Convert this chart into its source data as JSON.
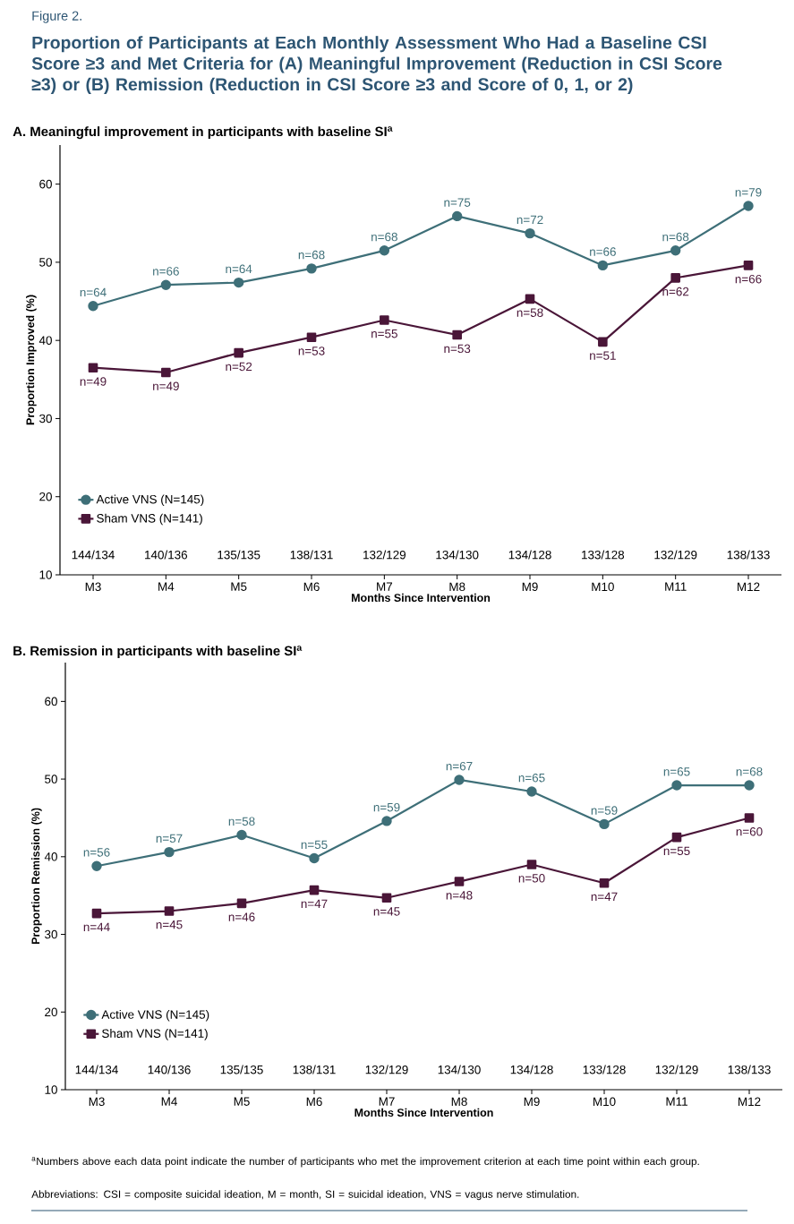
{
  "chart_data": [
    {
      "type": "line",
      "title": "Proportion of Participants at Each Monthly Assessment Who Had a Baseline CSI Score ≥3 and Met Criteria for (A) Meaningful Improvement (Reduction in CSI Score ≥3) or (B) Remission (Reduction in CSI Score ≥3 and Score of 0, 1, or 2)",
      "subtitle": "A. Meaningful improvement in participants with baseline SI$^{a}$",
      "xlabel": "Months Since Intervention",
      "ylabel": "Proportion Improved (%)",
      "categories": [
        "M3",
        "M4",
        "M5",
        "M6",
        "M7",
        "M8",
        "M9",
        "M10",
        "M11",
        "M12"
      ],
      "series": [
        {
          "name": "Active VNS (N=145)",
          "color": "#3e6f78",
          "marker": "circle",
          "values": [
            44.4,
            47.1,
            47.4,
            49.2,
            51.5,
            55.9,
            53.7,
            49.6,
            51.5,
            57.2
          ]
        },
        {
          "name": "Sham VNS (N=141)",
          "color": "#4a1638",
          "marker": "square",
          "values": [
            36.5,
            35.9,
            38.4,
            40.4,
            42.6,
            40.7,
            45.3,
            39.8,
            48.0,
            49.6
          ]
        }
      ],
      "ylim": [
        10,
        65
      ],
      "yticks": [
        10,
        20,
        30,
        40,
        50,
        60
      ],
      "legend": "bottom left",
      "annotations": [
        "144/134",
        "140/136",
        "135/135",
        "138/131",
        "132/129",
        "134/130",
        "134/128",
        "133/128",
        "132/129",
        "138/133",
        "Figure 2.",
        {
          "text": "n=64",
          "x": "M3",
          "y": 44.4
        },
        {
          "text": "n=66",
          "x": "M4",
          "y": 47.1
        },
        {
          "text": "n=64",
          "x": "M5",
          "y": 47.4
        },
        {
          "text": "n=68",
          "x": "M6",
          "y": 49.2
        },
        {
          "text": "n=68",
          "x": "M7",
          "y": 51.5
        },
        {
          "text": "n=75",
          "x": "M8",
          "y": 55.9
        },
        {
          "text": "n=72",
          "x": "M9",
          "y": 53.7
        },
        {
          "text": "n=66",
          "x": "M10",
          "y": 49.6
        },
        {
          "text": "n=68",
          "x": "M11",
          "y": 51.5
        },
        {
          "text": "n=79",
          "x": "M12",
          "y": 57.2
        },
        {
          "text": "n=49",
          "x": "M3",
          "y": 36.5
        },
        {
          "text": "n=49",
          "x": "M4",
          "y": 35.9
        },
        {
          "text": "n=52",
          "x": "M5",
          "y": 38.4
        },
        {
          "text": "n=53",
          "x": "M6",
          "y": 40.4
        },
        {
          "text": "n=55",
          "x": "M7",
          "y": 42.6
        },
        {
          "text": "n=53",
          "x": "M8",
          "y": 40.7
        },
        {
          "text": "n=58",
          "x": "M9",
          "y": 45.3
        },
        {
          "text": "n=51",
          "x": "M10",
          "y": 39.8
        },
        {
          "text": "n=62",
          "x": "M11",
          "y": 48.0
        },
        {
          "text": "n=66",
          "x": "M12",
          "y": 49.6
        }
      ]
    },
    {
      "type": "line",
      "title": "B. Remission in participants with baseline SI$^{a}$",
      "xlabel": "Months Since Intervention",
      "ylabel": "Proportion Remission (%)",
      "categories": [
        "M3",
        "M4",
        "M5",
        "M6",
        "M7",
        "M8",
        "M9",
        "M10",
        "M11",
        "M12"
      ],
      "series": [
        {
          "name": "Active VNS (N=145)",
          "color": "#3e6f78",
          "marker": "circle",
          "values": [
            38.8,
            40.6,
            42.8,
            39.8,
            44.6,
            49.9,
            48.4,
            44.2,
            49.2,
            49.2
          ]
        },
        {
          "name": "Sham VNS (N=141)",
          "color": "#4a1638",
          "marker": "square",
          "values": [
            32.7,
            33.0,
            34.0,
            35.7,
            34.7,
            36.8,
            39.0,
            36.6,
            42.5,
            45.0
          ]
        }
      ],
      "ylim": [
        10,
        65
      ],
      "yticks": [
        10,
        20,
        30,
        40,
        50,
        60
      ],
      "legend": "bottom left",
      "annotations": [
        "144/134",
        "140/136",
        "135/135",
        "138/131",
        "132/129",
        "134/130",
        "134/128",
        "133/128",
        "132/129",
        "138/133",
        "$^{a}$Numbers above each data point indicate the number of participants who met the improvement criterion at each time point within each group.",
        "Abbreviations: CSI = composite suicidal ideation, M = month, SI = suicidal ideation, VNS = vagus nerve stimulation.",
        {
          "text": "n=56",
          "x": "M3",
          "y": 38.8
        },
        {
          "text": "n=57",
          "x": "M4",
          "y": 40.6
        },
        {
          "text": "n=58",
          "x": "M5",
          "y": 42.8
        },
        {
          "text": "n=55",
          "x": "M6",
          "y": 39.8
        },
        {
          "text": "n=59",
          "x": "M7",
          "y": 44.6
        },
        {
          "text": "n=67",
          "x": "M8",
          "y": 49.9
        },
        {
          "text": "n=65",
          "x": "M9",
          "y": 48.4
        },
        {
          "text": "n=59",
          "x": "M10",
          "y": 44.2
        },
        {
          "text": "n=65",
          "x": "M11",
          "y": 49.2
        },
        {
          "text": "n=68",
          "x": "M12",
          "y": 49.2
        },
        {
          "text": "n=44",
          "x": "M3",
          "y": 32.7
        },
        {
          "text": "n=45",
          "x": "M4",
          "y": 33.0
        },
        {
          "text": "n=46",
          "x": "M5",
          "y": 34.0
        },
        {
          "text": "n=47",
          "x": "M6",
          "y": 35.7
        },
        {
          "text": "n=45",
          "x": "M7",
          "y": 34.7
        },
        {
          "text": "n=48",
          "x": "M8",
          "y": 36.8
        },
        {
          "text": "n=50",
          "x": "M9",
          "y": 39.0
        },
        {
          "text": "n=47",
          "x": "M10",
          "y": 36.6
        },
        {
          "text": "n=55",
          "x": "M11",
          "y": 42.5
        },
        {
          "text": "n=60",
          "x": "M12",
          "y": 45.0
        }
      ]
    }
  ]
}
